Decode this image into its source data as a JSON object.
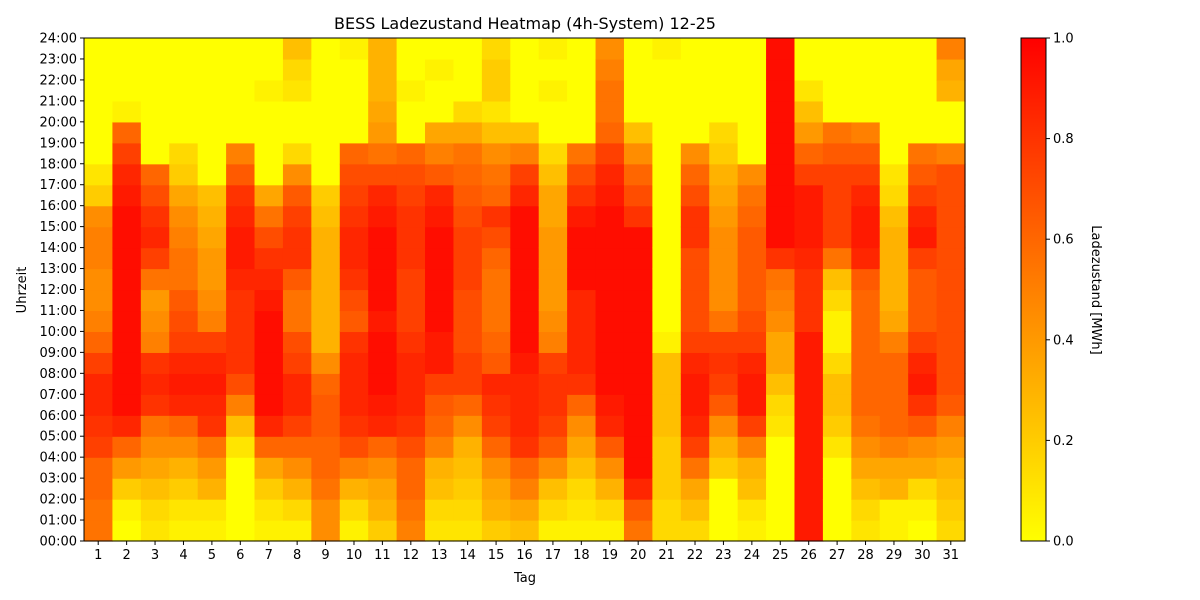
{
  "chart_data": {
    "type": "heatmap",
    "title": "BESS Ladezustand Heatmap (4h-System) 12-25",
    "xlabel": "Tag",
    "ylabel": "Uhrzeit",
    "colorbar_label": "Ladezustand [MWh]",
    "colorbar_ticks": [
      "0.0",
      "0.2",
      "0.4",
      "0.6",
      "0.8",
      "1.0"
    ],
    "colormap": [
      "#ffff00",
      "#ffbf00",
      "#ff8000",
      "#ff4000",
      "#ff0000"
    ],
    "value_range": [
      0.0,
      1.0
    ],
    "days": [
      "1",
      "2",
      "3",
      "4",
      "5",
      "6",
      "7",
      "8",
      "9",
      "10",
      "11",
      "12",
      "13",
      "14",
      "15",
      "16",
      "17",
      "18",
      "19",
      "20",
      "21",
      "22",
      "23",
      "24",
      "25",
      "26",
      "27",
      "28",
      "29",
      "30",
      "31"
    ],
    "hour_labels": [
      "00:00",
      "01:00",
      "02:00",
      "03:00",
      "04:00",
      "05:00",
      "06:00",
      "07:00",
      "08:00",
      "09:00",
      "10:00",
      "11:00",
      "12:00",
      "13:00",
      "14:00",
      "15:00",
      "16:00",
      "17:00",
      "18:00",
      "19:00",
      "20:00",
      "21:00",
      "22:00",
      "23:00",
      "24:00"
    ],
    "rows_per_day": 24,
    "values": [
      [
        0.55,
        0.55,
        0.6,
        0.6,
        0.75,
        0.8,
        0.85,
        0.85,
        0.75,
        0.6,
        0.5,
        0.45,
        0.45,
        0.5,
        0.5,
        0.45,
        0.2,
        0.1,
        0.0,
        0.0,
        0.0,
        0.0,
        0.0,
        0.0
      ],
      [
        0.0,
        0.05,
        0.2,
        0.4,
        0.6,
        0.85,
        0.95,
        0.95,
        0.95,
        0.95,
        0.95,
        0.95,
        0.95,
        0.95,
        0.95,
        0.95,
        0.9,
        0.85,
        0.75,
        0.6,
        0.05,
        0.0,
        0.0,
        0.0
      ],
      [
        0.1,
        0.15,
        0.25,
        0.35,
        0.45,
        0.55,
        0.8,
        0.85,
        0.8,
        0.5,
        0.45,
        0.4,
        0.55,
        0.75,
        0.85,
        0.8,
        0.7,
        0.6,
        0.0,
        0.0,
        0.0,
        0.0,
        0.0,
        0.0
      ],
      [
        0.05,
        0.1,
        0.2,
        0.3,
        0.45,
        0.6,
        0.85,
        0.9,
        0.85,
        0.75,
        0.7,
        0.65,
        0.55,
        0.55,
        0.5,
        0.45,
        0.35,
        0.2,
        0.15,
        0.0,
        0.0,
        0.0,
        0.0,
        0.0
      ],
      [
        0.05,
        0.1,
        0.3,
        0.4,
        0.55,
        0.8,
        0.85,
        0.9,
        0.85,
        0.75,
        0.5,
        0.45,
        0.4,
        0.4,
        0.35,
        0.3,
        0.25,
        0.0,
        0.0,
        0.0,
        0.0,
        0.0,
        0.0,
        0.0
      ],
      [
        0.0,
        0.0,
        0.0,
        0.0,
        0.1,
        0.25,
        0.5,
        0.7,
        0.8,
        0.8,
        0.8,
        0.8,
        0.85,
        0.9,
        0.9,
        0.85,
        0.8,
        0.65,
        0.5,
        0.0,
        0.0,
        0.0,
        0.0,
        0.0
      ],
      [
        0.05,
        0.1,
        0.2,
        0.35,
        0.6,
        0.85,
        0.95,
        0.95,
        0.95,
        0.95,
        0.95,
        0.9,
        0.85,
        0.8,
        0.7,
        0.55,
        0.35,
        0.0,
        0.0,
        0.0,
        0.0,
        0.05,
        0.0,
        0.0
      ],
      [
        0.05,
        0.15,
        0.3,
        0.45,
        0.6,
        0.75,
        0.85,
        0.85,
        0.75,
        0.7,
        0.55,
        0.55,
        0.65,
        0.8,
        0.8,
        0.75,
        0.65,
        0.45,
        0.15,
        0.0,
        0.0,
        0.1,
        0.15,
        0.25
      ],
      [
        0.45,
        0.45,
        0.55,
        0.6,
        0.6,
        0.65,
        0.65,
        0.6,
        0.45,
        0.3,
        0.3,
        0.3,
        0.3,
        0.3,
        0.3,
        0.25,
        0.2,
        0.0,
        0.0,
        0.0,
        0.0,
        0.0,
        0.0,
        0.0
      ],
      [
        0.05,
        0.15,
        0.3,
        0.5,
        0.7,
        0.8,
        0.85,
        0.85,
        0.85,
        0.8,
        0.65,
        0.7,
        0.8,
        0.85,
        0.85,
        0.8,
        0.75,
        0.7,
        0.6,
        0.0,
        0.0,
        0.0,
        0.0,
        0.05
      ],
      [
        0.2,
        0.3,
        0.35,
        0.45,
        0.6,
        0.85,
        0.9,
        0.95,
        0.95,
        0.95,
        0.9,
        0.95,
        0.95,
        0.95,
        0.95,
        0.9,
        0.85,
        0.7,
        0.55,
        0.4,
        0.35,
        0.3,
        0.3,
        0.3
      ],
      [
        0.5,
        0.55,
        0.6,
        0.6,
        0.7,
        0.8,
        0.85,
        0.85,
        0.85,
        0.8,
        0.75,
        0.75,
        0.75,
        0.8,
        0.8,
        0.8,
        0.75,
        0.7,
        0.6,
        0.0,
        0.0,
        0.05,
        0.0,
        0.0
      ],
      [
        0.1,
        0.15,
        0.25,
        0.3,
        0.5,
        0.6,
        0.65,
        0.75,
        0.9,
        0.9,
        0.95,
        0.95,
        0.95,
        0.95,
        0.95,
        0.9,
        0.85,
        0.65,
        0.5,
        0.35,
        0.0,
        0.0,
        0.05,
        0.0
      ],
      [
        0.1,
        0.15,
        0.2,
        0.25,
        0.3,
        0.45,
        0.6,
        0.75,
        0.75,
        0.7,
        0.7,
        0.7,
        0.75,
        0.75,
        0.75,
        0.7,
        0.65,
        0.6,
        0.55,
        0.35,
        0.15,
        0.0,
        0.0,
        0.0
      ],
      [
        0.2,
        0.3,
        0.35,
        0.45,
        0.6,
        0.75,
        0.8,
        0.85,
        0.65,
        0.6,
        0.55,
        0.55,
        0.55,
        0.6,
        0.7,
        0.8,
        0.6,
        0.55,
        0.45,
        0.25,
        0.1,
        0.2,
        0.2,
        0.15
      ],
      [
        0.25,
        0.35,
        0.5,
        0.6,
        0.8,
        0.85,
        0.85,
        0.85,
        0.9,
        0.95,
        0.95,
        0.95,
        0.95,
        0.95,
        0.95,
        0.95,
        0.85,
        0.75,
        0.5,
        0.25,
        0.0,
        0.0,
        0.0,
        0.0
      ],
      [
        0.05,
        0.15,
        0.25,
        0.45,
        0.65,
        0.75,
        0.8,
        0.8,
        0.75,
        0.5,
        0.45,
        0.4,
        0.4,
        0.4,
        0.4,
        0.35,
        0.35,
        0.25,
        0.15,
        0.0,
        0.0,
        0.05,
        0.0,
        0.05
      ],
      [
        0.05,
        0.1,
        0.15,
        0.25,
        0.35,
        0.45,
        0.6,
        0.8,
        0.85,
        0.85,
        0.85,
        0.85,
        0.95,
        0.95,
        0.95,
        0.9,
        0.8,
        0.7,
        0.55,
        0.0,
        0.0,
        0.0,
        0.0,
        0.0
      ],
      [
        0.05,
        0.15,
        0.3,
        0.45,
        0.65,
        0.85,
        0.9,
        0.95,
        0.95,
        0.95,
        0.95,
        0.95,
        0.95,
        0.95,
        0.95,
        0.95,
        0.9,
        0.85,
        0.75,
        0.6,
        0.55,
        0.55,
        0.5,
        0.45
      ],
      [
        0.55,
        0.65,
        0.85,
        0.95,
        0.95,
        0.95,
        0.95,
        0.95,
        0.95,
        0.95,
        0.95,
        0.95,
        0.95,
        0.95,
        0.95,
        0.8,
        0.7,
        0.6,
        0.45,
        0.25,
        0.0,
        0.0,
        0.0,
        0.0
      ],
      [
        0.15,
        0.15,
        0.2,
        0.2,
        0.2,
        0.25,
        0.25,
        0.25,
        0.25,
        0.05,
        0.0,
        0.0,
        0.0,
        0.0,
        0.0,
        0.0,
        0.0,
        0.0,
        0.0,
        0.0,
        0.0,
        0.0,
        0.0,
        0.05
      ],
      [
        0.15,
        0.25,
        0.35,
        0.55,
        0.75,
        0.85,
        0.9,
        0.9,
        0.85,
        0.75,
        0.7,
        0.7,
        0.7,
        0.7,
        0.8,
        0.8,
        0.7,
        0.6,
        0.45,
        0.0,
        0.0,
        0.0,
        0.0,
        0.0
      ],
      [
        0.0,
        0.0,
        0.0,
        0.2,
        0.3,
        0.45,
        0.65,
        0.75,
        0.8,
        0.75,
        0.55,
        0.45,
        0.45,
        0.45,
        0.45,
        0.4,
        0.35,
        0.3,
        0.2,
        0.15,
        0.0,
        0.0,
        0.0,
        0.0
      ],
      [
        0.05,
        0.1,
        0.25,
        0.3,
        0.5,
        0.75,
        0.9,
        0.9,
        0.85,
        0.75,
        0.7,
        0.65,
        0.65,
        0.65,
        0.65,
        0.6,
        0.55,
        0.45,
        0.0,
        0.0,
        0.0,
        0.0,
        0.0,
        0.0
      ],
      [
        0.0,
        0.0,
        0.0,
        0.0,
        0.0,
        0.1,
        0.15,
        0.25,
        0.35,
        0.35,
        0.45,
        0.5,
        0.55,
        0.8,
        0.95,
        0.95,
        0.95,
        0.95,
        0.95,
        0.95,
        0.95,
        0.95,
        0.95,
        0.95
      ],
      [
        0.9,
        0.9,
        0.9,
        0.9,
        0.9,
        0.9,
        0.9,
        0.9,
        0.9,
        0.9,
        0.8,
        0.8,
        0.8,
        0.85,
        0.9,
        0.9,
        0.9,
        0.75,
        0.6,
        0.4,
        0.25,
        0.1,
        0.0,
        0.0
      ],
      [
        0.0,
        0.0,
        0.0,
        0.0,
        0.1,
        0.2,
        0.25,
        0.25,
        0.15,
        0.05,
        0.05,
        0.15,
        0.25,
        0.55,
        0.75,
        0.75,
        0.75,
        0.75,
        0.65,
        0.55,
        0.0,
        0.0,
        0.0,
        0.0
      ],
      [
        0.1,
        0.15,
        0.25,
        0.35,
        0.45,
        0.55,
        0.6,
        0.6,
        0.6,
        0.6,
        0.6,
        0.6,
        0.65,
        0.85,
        0.9,
        0.9,
        0.85,
        0.75,
        0.65,
        0.5,
        0.0,
        0.0,
        0.0,
        0.0
      ],
      [
        0.05,
        0.05,
        0.3,
        0.35,
        0.5,
        0.6,
        0.6,
        0.6,
        0.6,
        0.5,
        0.35,
        0.3,
        0.3,
        0.3,
        0.3,
        0.25,
        0.15,
        0.1,
        0.0,
        0.0,
        0.0,
        0.0,
        0.0,
        0.0
      ],
      [
        0.0,
        0.05,
        0.15,
        0.35,
        0.45,
        0.65,
        0.8,
        0.9,
        0.85,
        0.75,
        0.65,
        0.65,
        0.65,
        0.75,
        0.9,
        0.85,
        0.75,
        0.65,
        0.55,
        0.0,
        0.0,
        0.0,
        0.0,
        0.0
      ],
      [
        0.15,
        0.2,
        0.25,
        0.3,
        0.4,
        0.5,
        0.65,
        0.7,
        0.7,
        0.7,
        0.7,
        0.7,
        0.7,
        0.7,
        0.7,
        0.7,
        0.7,
        0.7,
        0.5,
        0.0,
        0.0,
        0.3,
        0.35,
        0.5
      ]
    ]
  }
}
